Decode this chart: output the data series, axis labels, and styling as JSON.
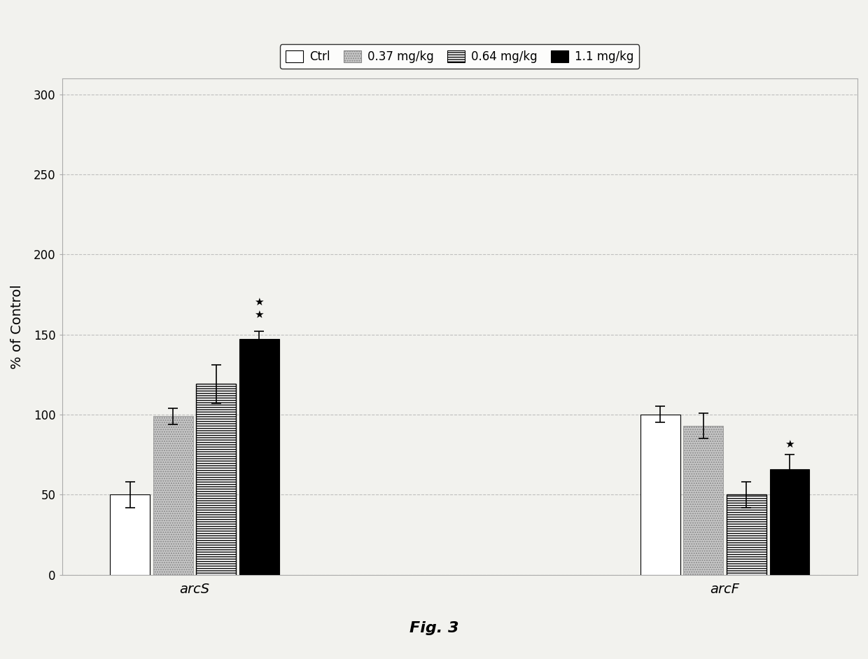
{
  "groups": [
    "arcS",
    "arcF"
  ],
  "conditions": [
    "Ctrl",
    "0.37 mg/kg",
    "0.64 mg/kg",
    "1.1 mg/kg"
  ],
  "values": {
    "arcS": [
      50,
      99,
      119,
      147
    ],
    "arcF": [
      100,
      93,
      50,
      66
    ]
  },
  "errors": {
    "arcS": [
      8,
      5,
      12,
      5
    ],
    "arcF": [
      5,
      8,
      8,
      9
    ]
  },
  "ylabel": "% of Control",
  "ylim": [
    0,
    310
  ],
  "yticks": [
    0,
    50,
    100,
    150,
    200,
    250,
    300
  ],
  "bar_colors": [
    "white",
    "#c8c8c8",
    "white",
    "black"
  ],
  "bar_hatches": [
    null,
    "....",
    "----",
    null
  ],
  "bar_edgecolors": [
    "black",
    "#888888",
    "black",
    "black"
  ],
  "legend_labels": [
    "Ctrl",
    "0.37 mg/kg",
    "0.64 mg/kg",
    "1.1 mg/kg"
  ],
  "background_color": "#f2f2ee",
  "grid_color": "#aaaaaa",
  "fig_caption": "Fig. 3",
  "bar_width": 0.12,
  "group_positions": [
    0.95,
    2.55
  ]
}
